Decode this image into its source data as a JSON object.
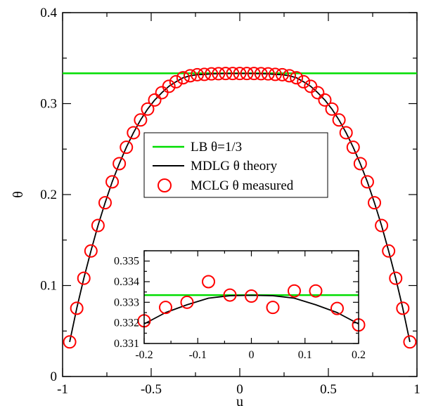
{
  "chart_data": [
    {
      "type": "line",
      "panel": "main",
      "xlabel": "u",
      "ylabel": "θ",
      "xlim": [
        -1,
        1
      ],
      "ylim": [
        0,
        0.4
      ],
      "xticks": [
        -1,
        -0.5,
        0,
        0.5,
        1
      ],
      "xtick_labels": [
        "-1",
        "-0.5",
        "0",
        "0.5",
        "1"
      ],
      "yticks": [
        0,
        0.1,
        0.2,
        0.3,
        0.4
      ],
      "ytick_labels": [
        "0",
        "0.1",
        "0.2",
        "0.3",
        "0.4"
      ],
      "grid": false,
      "legend_position": "center",
      "series": [
        {
          "name": "LB θ=1/3",
          "style": "line",
          "color": "#00dd00",
          "x": [
            -1,
            1
          ],
          "y": [
            0.3333,
            0.3333
          ]
        },
        {
          "name": "MDLG θ theory",
          "style": "line",
          "color": "#000000",
          "x": [
            -0.96,
            -0.92,
            -0.88,
            -0.84,
            -0.8,
            -0.76,
            -0.72,
            -0.68,
            -0.64,
            -0.6,
            -0.56,
            -0.52,
            -0.48,
            -0.44,
            -0.4,
            -0.36,
            -0.32,
            -0.28,
            -0.24,
            -0.2,
            -0.16,
            -0.12,
            -0.08,
            -0.04,
            0,
            0.04,
            0.08,
            0.12,
            0.16,
            0.2,
            0.24,
            0.28,
            0.32,
            0.36,
            0.4,
            0.44,
            0.48,
            0.52,
            0.56,
            0.6,
            0.64,
            0.68,
            0.72,
            0.76,
            0.8,
            0.84,
            0.88,
            0.92,
            0.96
          ],
          "y": [
            0.038,
            0.075,
            0.108,
            0.138,
            0.166,
            0.191,
            0.214,
            0.234,
            0.252,
            0.268,
            0.282,
            0.294,
            0.304,
            0.312,
            0.319,
            0.324,
            0.3284,
            0.3306,
            0.3318,
            0.3321,
            0.3327,
            0.3329,
            0.3331,
            0.3331,
            0.3331,
            0.3331,
            0.3331,
            0.3329,
            0.3327,
            0.3321,
            0.3318,
            0.3306,
            0.3284,
            0.324,
            0.319,
            0.312,
            0.304,
            0.294,
            0.282,
            0.268,
            0.252,
            0.234,
            0.214,
            0.191,
            0.166,
            0.138,
            0.108,
            0.075,
            0.038
          ]
        },
        {
          "name": "MCLG θ measured",
          "style": "markers",
          "color": "#ff0000",
          "x": [
            -0.96,
            -0.92,
            -0.88,
            -0.84,
            -0.8,
            -0.76,
            -0.72,
            -0.68,
            -0.64,
            -0.6,
            -0.56,
            -0.52,
            -0.48,
            -0.44,
            -0.4,
            -0.36,
            -0.32,
            -0.28,
            -0.24,
            -0.2,
            -0.16,
            -0.12,
            -0.08,
            -0.04,
            0,
            0.04,
            0.08,
            0.12,
            0.16,
            0.2,
            0.24,
            0.28,
            0.32,
            0.36,
            0.4,
            0.44,
            0.48,
            0.52,
            0.56,
            0.6,
            0.64,
            0.68,
            0.72,
            0.76,
            0.8,
            0.84,
            0.88,
            0.92,
            0.96
          ],
          "y": [
            0.038,
            0.075,
            0.108,
            0.138,
            0.166,
            0.191,
            0.214,
            0.234,
            0.252,
            0.268,
            0.282,
            0.294,
            0.304,
            0.312,
            0.319,
            0.324,
            0.3284,
            0.3306,
            0.3318,
            0.3321,
            0.3327,
            0.3329,
            0.3331,
            0.3331,
            0.3331,
            0.3331,
            0.3331,
            0.3329,
            0.3327,
            0.3321,
            0.3318,
            0.3306,
            0.3284,
            0.324,
            0.319,
            0.312,
            0.304,
            0.294,
            0.282,
            0.268,
            0.252,
            0.234,
            0.214,
            0.191,
            0.166,
            0.138,
            0.108,
            0.075,
            0.038
          ]
        }
      ]
    },
    {
      "type": "line",
      "panel": "inset",
      "xlim": [
        -0.2,
        0.2
      ],
      "ylim": [
        0.331,
        0.3355
      ],
      "xticks": [
        -0.2,
        -0.1,
        0,
        0.1,
        0.2
      ],
      "xtick_labels": [
        "-0.2",
        "-0.1",
        "0",
        "0.1",
        "0.2"
      ],
      "yticks": [
        0.331,
        0.332,
        0.333,
        0.334,
        0.335
      ],
      "ytick_labels": [
        "0.331",
        "0.332",
        "0.333",
        "0.334",
        "0.335"
      ],
      "grid": false,
      "series": [
        {
          "style": "line",
          "color": "#00dd00",
          "x": [
            -0.2,
            0.2
          ],
          "y": [
            0.33335,
            0.33335
          ]
        },
        {
          "style": "line",
          "color": "#000000",
          "x": [
            -0.2,
            -0.16,
            -0.12,
            -0.08,
            -0.04,
            0,
            0.04,
            0.08,
            0.12,
            0.16,
            0.2
          ],
          "y": [
            0.33195,
            0.3325,
            0.33288,
            0.3332,
            0.33332,
            0.33334,
            0.33332,
            0.3332,
            0.33288,
            0.3325,
            0.33195
          ]
        },
        {
          "style": "markers",
          "color": "#ff0000",
          "x": [
            -0.2,
            -0.16,
            -0.12,
            -0.08,
            -0.04,
            0,
            0.04,
            0.08,
            0.12,
            0.16,
            0.2
          ],
          "y": [
            0.3321,
            0.33275,
            0.333,
            0.334,
            0.33335,
            0.3333,
            0.33275,
            0.33355,
            0.33355,
            0.3327,
            0.3319
          ]
        }
      ]
    }
  ]
}
